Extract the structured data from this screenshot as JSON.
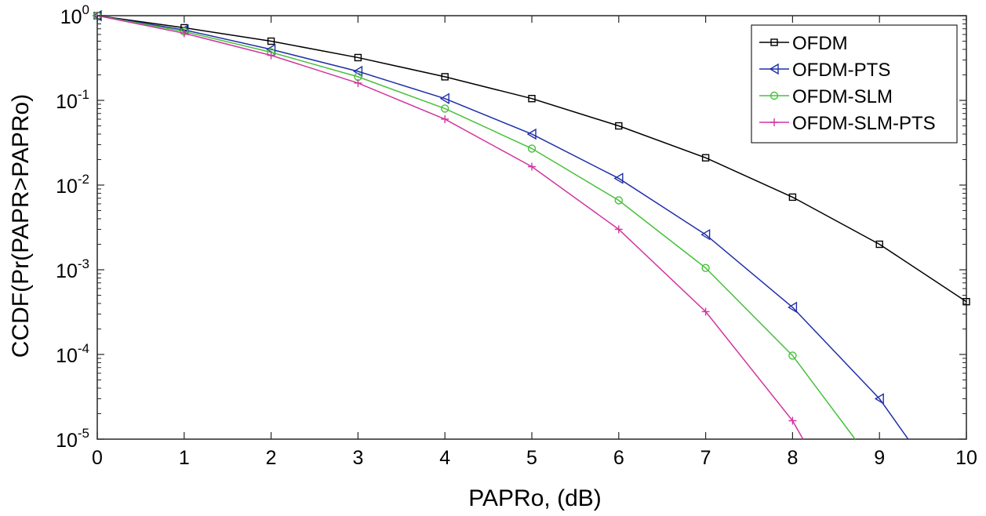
{
  "chart_data": {
    "type": "line",
    "title": "",
    "xlabel": "PAPRo, (dB)",
    "ylabel": "CCDF(Pr(PAPR>PAPRo)",
    "xlim": [
      0,
      10
    ],
    "ylim": [
      1e-05,
      1
    ],
    "yscale": "log",
    "grid": false,
    "legend_position": "top-right",
    "x_ticks": [
      0,
      1,
      2,
      3,
      4,
      5,
      6,
      7,
      8,
      9,
      10
    ],
    "x_tick_labels": [
      "0",
      "1",
      "2",
      "3",
      "4",
      "5",
      "6",
      "7",
      "8",
      "9",
      "10"
    ],
    "y_ticks": [
      {
        "value": 1,
        "base": "10",
        "exp": "0"
      },
      {
        "value": 0.1,
        "base": "10",
        "exp": "-1"
      },
      {
        "value": 0.01,
        "base": "10",
        "exp": "-2"
      },
      {
        "value": 0.001,
        "base": "10",
        "exp": "-3"
      },
      {
        "value": 0.0001,
        "base": "10",
        "exp": "-4"
      },
      {
        "value": 1e-05,
        "base": "10",
        "exp": "-5"
      }
    ],
    "series": [
      {
        "name": "OFDM",
        "color": "#000000",
        "marker": "square",
        "x": [
          0,
          1,
          2,
          3,
          4,
          5,
          6,
          7,
          8,
          9,
          10
        ],
        "y": [
          1.0,
          0.72,
          0.5,
          0.32,
          0.19,
          0.105,
          0.05,
          0.021,
          0.0072,
          0.002,
          0.00042
        ]
      },
      {
        "name": "OFDM-PTS",
        "color": "#1f2fa8",
        "marker": "triangle-left",
        "x": [
          0,
          1,
          2,
          3,
          4,
          5,
          6,
          7,
          8,
          9,
          9.33
        ],
        "y": [
          1.0,
          0.68,
          0.4,
          0.22,
          0.105,
          0.04,
          0.012,
          0.0026,
          0.00036,
          3e-05,
          1e-05
        ],
        "marker_count": 10
      },
      {
        "name": "OFDM-SLM",
        "color": "#47c23a",
        "marker": "circle",
        "x": [
          0,
          1,
          2,
          3,
          4,
          5,
          6,
          7,
          8,
          8.72
        ],
        "y": [
          1.0,
          0.65,
          0.37,
          0.19,
          0.08,
          0.027,
          0.0066,
          0.00105,
          9.7e-05,
          1e-05
        ],
        "marker_count": 9
      },
      {
        "name": "OFDM-SLM-PTS",
        "color": "#d1359f",
        "marker": "plus",
        "x": [
          0,
          1,
          2,
          3,
          4,
          5,
          6,
          7,
          8,
          8.12
        ],
        "y": [
          1.0,
          0.62,
          0.34,
          0.16,
          0.06,
          0.0165,
          0.003,
          0.00032,
          1.65e-05,
          1e-05
        ],
        "marker_count": 9
      }
    ]
  }
}
